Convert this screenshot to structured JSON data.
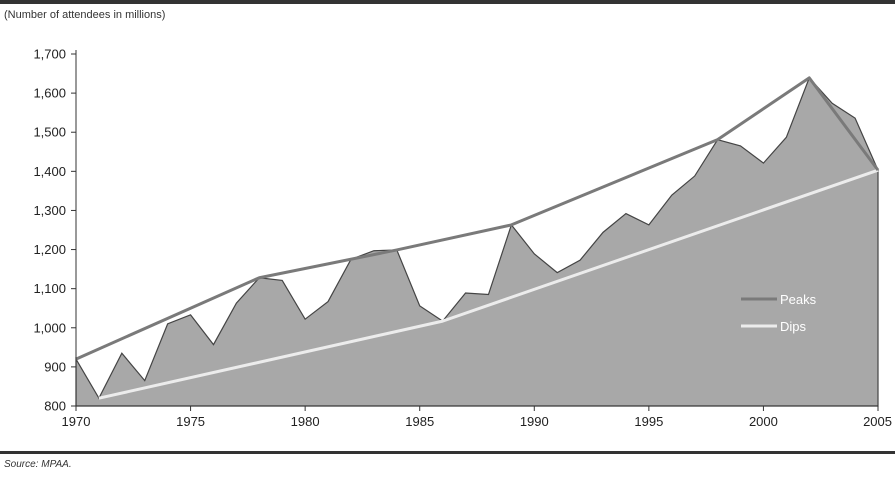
{
  "header": {
    "subtitle": "(Number of attendees in millions)"
  },
  "footer": {
    "source": "Source:  MPAA."
  },
  "colors": {
    "area": "#a8a8a8",
    "peaks": "#7a7a7a",
    "dips": "#ececec",
    "axis": "#333333",
    "rule": "#333333"
  },
  "chart_data": {
    "type": "area",
    "title": "",
    "subtitle": "(Number of attendees in millions)",
    "xlabel": "",
    "ylabel": "",
    "xlim": [
      1970,
      2005
    ],
    "ylim": [
      800,
      1700
    ],
    "grid": false,
    "legend_position": "right",
    "x_ticks": [
      "1970",
      "1975",
      "1980",
      "1985",
      "1990",
      "1995",
      "2000",
      "2005"
    ],
    "y_ticks": [
      "800",
      "900",
      "1,000",
      "1,100",
      "1,200",
      "1,300",
      "1,400",
      "1,500",
      "1,600",
      "1,700"
    ],
    "x": [
      1970,
      1971,
      1972,
      1973,
      1974,
      1975,
      1976,
      1977,
      1978,
      1979,
      1980,
      1981,
      1982,
      1983,
      1984,
      1985,
      1986,
      1987,
      1988,
      1989,
      1990,
      1991,
      1992,
      1993,
      1994,
      1995,
      1996,
      1997,
      1998,
      1999,
      2000,
      2001,
      2002,
      2003,
      2004,
      2005
    ],
    "series": [
      {
        "role": "attendance",
        "values": [
          920,
          820,
          935,
          865,
          1010,
          1033,
          957,
          1063,
          1128,
          1121,
          1022,
          1067,
          1175,
          1197,
          1199,
          1056,
          1017,
          1089,
          1085,
          1263,
          1189,
          1141,
          1173,
          1244,
          1292,
          1263,
          1339,
          1388,
          1481,
          1465,
          1421,
          1487,
          1639,
          1574,
          1536,
          1403
        ]
      },
      {
        "name": "Peaks",
        "x": [
          1970,
          1978,
          1984,
          1989,
          1998,
          2002,
          2005
        ],
        "values": [
          920,
          1128,
          1199,
          1263,
          1481,
          1639,
          1403
        ]
      },
      {
        "name": "Dips",
        "x": [
          1971,
          1986,
          2005
        ],
        "values": [
          820,
          1017,
          1403
        ]
      }
    ]
  }
}
